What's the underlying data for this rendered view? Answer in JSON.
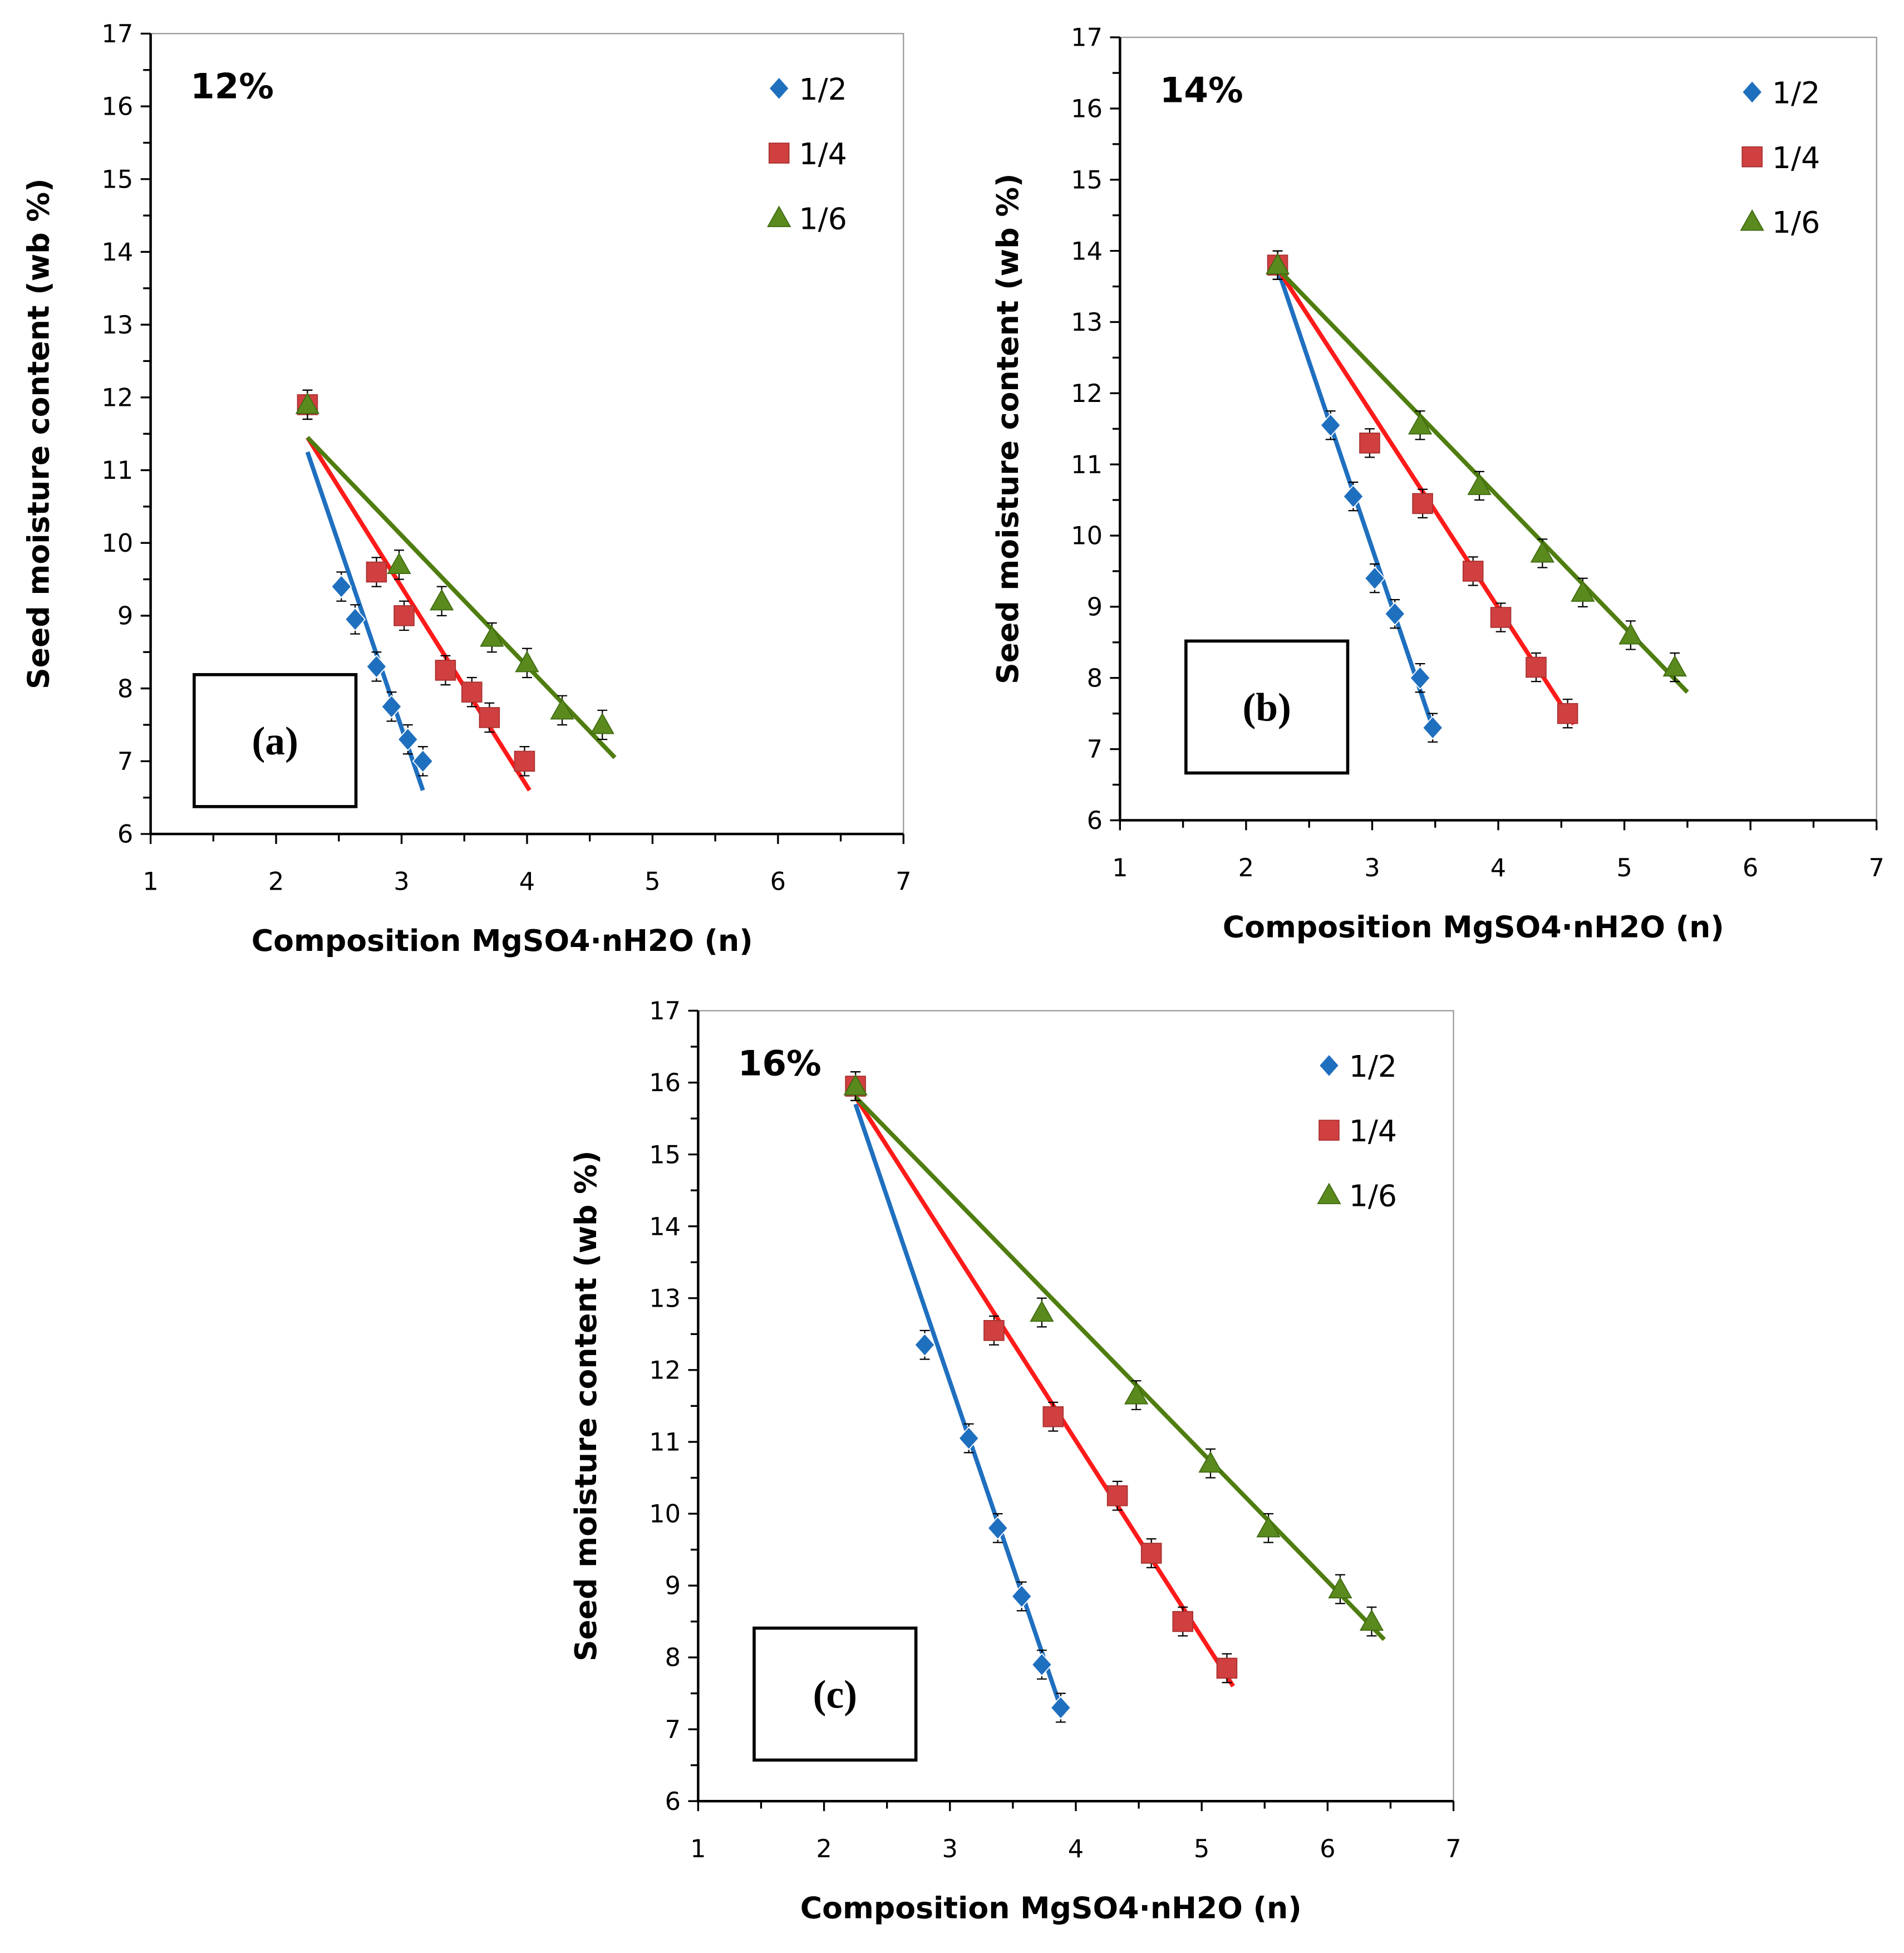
{
  "colors": {
    "s12": "#1f6fbf",
    "s14": "#d04040",
    "s16": "#5a8a1e",
    "line12": "#1f6fbf",
    "line14": "#ff1a1a",
    "line16": "#4f7d0f"
  },
  "chart_data": [
    {
      "type": "scatter",
      "panel": "(a)",
      "annotation": "12%",
      "xlabel": "Composition MgSO4·nH2O (n)",
      "ylabel": "Seed moisture content (wb %)",
      "xlim": [
        1,
        7
      ],
      "ylim": [
        6,
        17
      ],
      "xticks": [
        1,
        2,
        3,
        4,
        5,
        6,
        7
      ],
      "yticks": [
        6,
        7,
        8,
        9,
        10,
        11,
        12,
        13,
        14,
        15,
        16,
        17
      ],
      "legend": "top-right",
      "error": 0.2,
      "series": [
        {
          "name": "1/2",
          "marker": "diamond",
          "x": [
            2.52,
            2.63,
            2.8,
            2.92,
            3.05,
            3.17
          ],
          "y": [
            9.4,
            8.95,
            8.3,
            7.75,
            7.3,
            7.0
          ],
          "fit": [
            [
              2.25,
              11.25
            ],
            [
              3.17,
              6.6
            ]
          ]
        },
        {
          "name": "1/4",
          "marker": "square",
          "x": [
            2.25,
            2.8,
            3.02,
            3.35,
            3.56,
            3.7,
            3.98
          ],
          "y": [
            11.9,
            9.6,
            9.0,
            8.25,
            7.95,
            7.6,
            7.0
          ],
          "fit": [
            [
              2.25,
              11.45
            ],
            [
              4.02,
              6.6
            ]
          ]
        },
        {
          "name": "1/6",
          "marker": "triangle",
          "x": [
            2.25,
            2.98,
            3.32,
            3.72,
            4.0,
            4.28,
            4.6
          ],
          "y": [
            11.9,
            9.7,
            9.2,
            8.7,
            8.35,
            7.7,
            7.5
          ],
          "fit": [
            [
              2.25,
              11.45
            ],
            [
              4.7,
              7.05
            ]
          ]
        }
      ]
    },
    {
      "type": "scatter",
      "panel": "(b)",
      "annotation": "14%",
      "xlabel": "Composition MgSO4·nH2O (n)",
      "ylabel": "Seed moisture content (wb %)",
      "xlim": [
        1,
        7
      ],
      "ylim": [
        6,
        17
      ],
      "xticks": [
        1,
        2,
        3,
        4,
        5,
        6,
        7
      ],
      "yticks": [
        6,
        7,
        8,
        9,
        10,
        11,
        12,
        13,
        14,
        15,
        16,
        17
      ],
      "legend": "top-right",
      "error": 0.2,
      "series": [
        {
          "name": "1/2",
          "marker": "diamond",
          "x": [
            2.25,
            2.67,
            2.85,
            3.02,
            3.18,
            3.38,
            3.48
          ],
          "y": [
            13.8,
            11.55,
            10.55,
            9.4,
            8.9,
            8.0,
            7.3
          ],
          "fit": [
            [
              2.25,
              13.75
            ],
            [
              3.5,
              7.2
            ]
          ]
        },
        {
          "name": "1/4",
          "marker": "square",
          "x": [
            2.25,
            2.98,
            3.4,
            3.8,
            4.02,
            4.3,
            4.55
          ],
          "y": [
            13.8,
            11.3,
            10.45,
            9.5,
            8.85,
            8.15,
            7.5
          ],
          "fit": [
            [
              2.25,
              13.75
            ],
            [
              4.6,
              7.35
            ]
          ]
        },
        {
          "name": "1/6",
          "marker": "triangle",
          "x": [
            2.25,
            3.38,
            3.85,
            4.35,
            4.67,
            5.05,
            5.4
          ],
          "y": [
            13.8,
            11.55,
            10.7,
            9.75,
            9.2,
            8.6,
            8.15
          ],
          "fit": [
            [
              2.25,
              13.75
            ],
            [
              5.5,
              7.8
            ]
          ]
        }
      ]
    },
    {
      "type": "scatter",
      "panel": "(c)",
      "annotation": "16%",
      "xlabel": "Composition MgSO4·nH2O (n)",
      "ylabel": "Seed moisture content (wb %)",
      "xlim": [
        1,
        7
      ],
      "ylim": [
        6,
        17
      ],
      "xticks": [
        1,
        2,
        3,
        4,
        5,
        6,
        7
      ],
      "yticks": [
        6,
        7,
        8,
        9,
        10,
        11,
        12,
        13,
        14,
        15,
        16,
        17
      ],
      "legend": "top-right",
      "error": 0.2,
      "series": [
        {
          "name": "1/2",
          "marker": "diamond",
          "x": [
            2.25,
            2.8,
            3.15,
            3.38,
            3.57,
            3.73,
            3.88
          ],
          "y": [
            15.95,
            12.35,
            11.05,
            9.8,
            8.85,
            7.9,
            7.3
          ],
          "fit": [
            [
              2.25,
              15.7
            ],
            [
              3.9,
              7.2
            ]
          ]
        },
        {
          "name": "1/4",
          "marker": "square",
          "x": [
            2.25,
            3.35,
            3.82,
            4.33,
            4.6,
            4.85,
            5.2
          ],
          "y": [
            15.95,
            12.55,
            11.35,
            10.25,
            9.45,
            8.5,
            7.85
          ],
          "fit": [
            [
              2.25,
              15.8
            ],
            [
              5.25,
              7.6
            ]
          ]
        },
        {
          "name": "1/6",
          "marker": "triangle",
          "x": [
            2.25,
            3.73,
            4.48,
            5.07,
            5.53,
            6.1,
            6.35
          ],
          "y": [
            15.95,
            12.8,
            11.65,
            10.7,
            9.8,
            8.95,
            8.5
          ],
          "fit": [
            [
              2.25,
              15.8
            ],
            [
              6.45,
              8.25
            ]
          ]
        }
      ]
    }
  ]
}
